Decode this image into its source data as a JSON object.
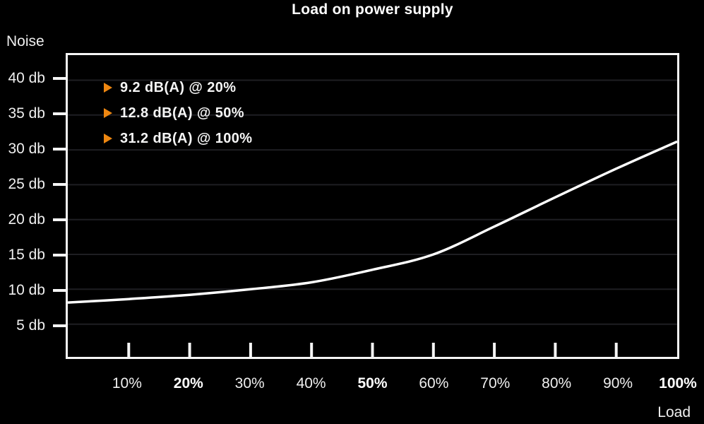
{
  "title": "Load on power supply",
  "y_axis_label": "Noise",
  "x_axis_label": "Load",
  "colors": {
    "background": "#000000",
    "text": "#efefef",
    "curve": "#ffffff",
    "border": "#f5f5f5",
    "grid": "#1e1e22",
    "accent_orange": "#ee8711"
  },
  "chart_data": {
    "type": "line",
    "title": "Load on power supply",
    "xlabel": "Load",
    "ylabel": "Noise",
    "x": [
      0,
      10,
      20,
      30,
      40,
      50,
      60,
      70,
      80,
      90,
      100
    ],
    "series": [
      {
        "name": "Noise (dB)",
        "values": [
          8.1,
          8.6,
          9.2,
          10.0,
          11.0,
          12.8,
          15.0,
          19.0,
          23.2,
          27.3,
          31.2
        ]
      }
    ],
    "xlim": [
      0,
      100
    ],
    "ylim": [
      0.3,
      43.6
    ],
    "grid": "horizontal",
    "legend_position": "top-left-inside",
    "y_ticks": [
      {
        "label": "40 db",
        "value": 40
      },
      {
        "label": "35 db",
        "value": 35
      },
      {
        "label": "30 db",
        "value": 30
      },
      {
        "label": "25 db",
        "value": 25
      },
      {
        "label": "20 db",
        "value": 20
      },
      {
        "label": "15 db",
        "value": 15
      },
      {
        "label": "10 db",
        "value": 10
      },
      {
        "label": "5 db",
        "value": 5
      }
    ],
    "x_ticks": [
      {
        "label": "10%",
        "value": 10,
        "bold": false
      },
      {
        "label": "20%",
        "value": 20,
        "bold": true
      },
      {
        "label": "30%",
        "value": 30,
        "bold": false
      },
      {
        "label": "40%",
        "value": 40,
        "bold": false
      },
      {
        "label": "50%",
        "value": 50,
        "bold": true
      },
      {
        "label": "60%",
        "value": 60,
        "bold": false
      },
      {
        "label": "70%",
        "value": 70,
        "bold": false
      },
      {
        "label": "80%",
        "value": 80,
        "bold": false
      },
      {
        "label": "90%",
        "value": 90,
        "bold": false
      },
      {
        "label": "100%",
        "value": 100,
        "bold": true
      }
    ],
    "annotations": [
      "9.2 dB(A) @ 20%",
      "12.8 dB(A) @ 50%",
      "31.2 dB(A) @ 100%"
    ]
  }
}
